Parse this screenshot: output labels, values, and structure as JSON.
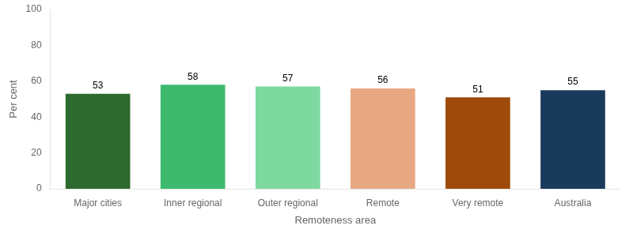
{
  "chart_data": {
    "type": "bar",
    "categories": [
      "Major cities",
      "Inner regional",
      "Outer regional",
      "Remote",
      "Very remote",
      "Australia"
    ],
    "values": [
      53,
      58,
      57,
      56,
      51,
      55
    ],
    "colors": [
      "#2d6a2d",
      "#3dba6e",
      "#7dd9a0",
      "#e8a882",
      "#9e4a0a",
      "#1a3a5c"
    ],
    "xlabel": "Remoteness area",
    "ylabel": "Per cent",
    "ylim": [
      0,
      100
    ],
    "yticks": [
      0,
      20,
      40,
      60,
      80,
      100
    ],
    "grid": false,
    "data_labels": true
  }
}
